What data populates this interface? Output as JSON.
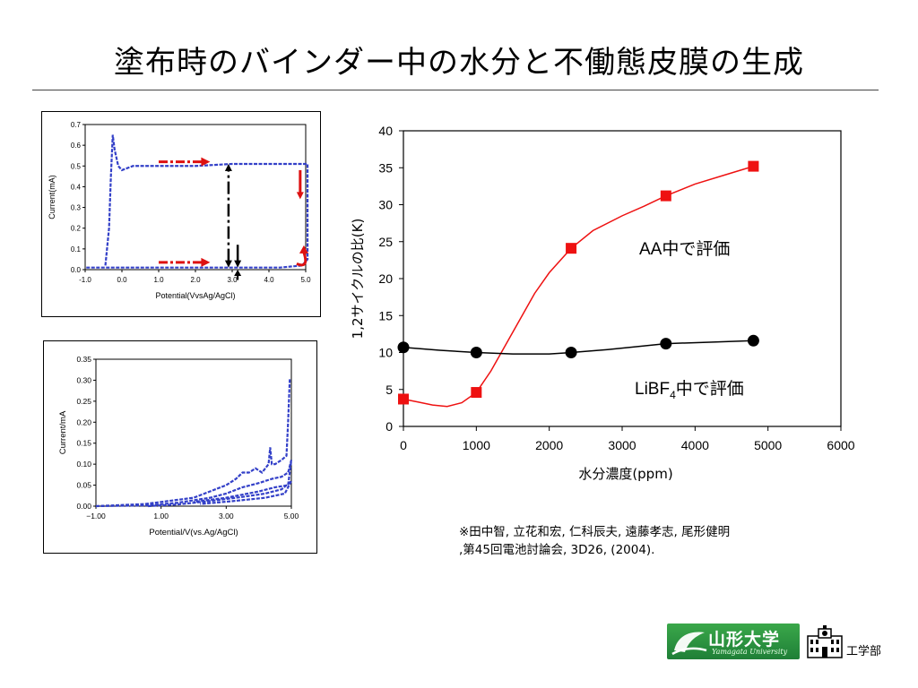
{
  "slide": {
    "title": "塗布時のバインダー中の水分と不働態皮膜の生成",
    "citation_line1": "※田中智, 立花和宏, 仁科辰夫, 遠藤孝志, 尾形健明",
    "citation_line2": ",第45回電池討論会, 3D26, (2004).",
    "logo_text": "山形大学",
    "logo_subtext": "Yamagata University",
    "faculty": "工学部"
  },
  "chart_data": [
    {
      "type": "line",
      "title": "",
      "xlabel": "Potential(VvsAg/AgCl)",
      "ylabel": "Current(mA)",
      "xlim": [
        -1.0,
        5.0
      ],
      "ylim": [
        0.0,
        0.7
      ],
      "xticks": [
        "-1.0",
        "0.0",
        "1.0",
        "2.0",
        "3.0",
        "4.0",
        "5.0"
      ],
      "yticks": [
        "0.0",
        "0.1",
        "0.2",
        "0.3",
        "0.4",
        "0.5",
        "0.6",
        "0.7"
      ],
      "series": [
        {
          "color": "#3340c8",
          "x": [
            -0.45,
            -0.35,
            -0.3,
            -0.25,
            -0.2,
            -0.1,
            0.0,
            0.3,
            1.0,
            2.0,
            3.0,
            4.0,
            4.5,
            4.8,
            5.05,
            5.05,
            4.9,
            4.6,
            4.3,
            4.0,
            3.0,
            2.0,
            1.0,
            0.0,
            -0.4,
            -1.0
          ],
          "y": [
            0.02,
            0.2,
            0.45,
            0.65,
            0.58,
            0.5,
            0.48,
            0.5,
            0.5,
            0.5,
            0.51,
            0.51,
            0.51,
            0.51,
            0.51,
            0.05,
            0.02,
            0.015,
            0.01,
            0.01,
            0.01,
            0.01,
            0.01,
            0.01,
            0.01,
            0.01
          ]
        }
      ],
      "annotations": [
        {
          "type": "arrow",
          "color": "#dd1111",
          "direction": "right",
          "x1": 1.0,
          "x2": 2.4,
          "y": 0.52
        },
        {
          "type": "arrow",
          "color": "#dd1111",
          "direction": "right",
          "x1": 1.0,
          "x2": 2.4,
          "y": 0.035
        },
        {
          "type": "arrow",
          "color": "#dd1111",
          "direction": "down",
          "x": 4.85,
          "y1": 0.48,
          "y2": 0.34
        },
        {
          "type": "arrow",
          "color": "#dd1111",
          "direction": "curve-up",
          "x": 4.95,
          "y1": 0.02,
          "y2": 0.1
        },
        {
          "type": "double-arrow",
          "color": "#000000",
          "x": 2.9,
          "y1": 0.01,
          "y2": 0.51
        },
        {
          "type": "arrow",
          "color": "#000000",
          "direction": "down",
          "x": 3.15,
          "y1": 0.12,
          "y2": 0.01
        },
        {
          "type": "arrow",
          "color": "#000000",
          "direction": "up",
          "x": 3.15,
          "y1": -0.05,
          "y2": 0.0
        }
      ]
    },
    {
      "type": "line",
      "title": "",
      "xlabel": "Potential/V(vs.Ag/AgCl)",
      "ylabel": "Current/mA",
      "xlim": [
        -1.0,
        5.0
      ],
      "ylim": [
        0.0,
        0.35
      ],
      "xticks": [
        "−1.00",
        "1.00",
        "3.00",
        "5.00"
      ],
      "yticks": [
        "0.00",
        "0.05",
        "0.10",
        "0.15",
        "0.20",
        "0.25",
        "0.30",
        "0.35"
      ],
      "series": [
        {
          "color": "#3340c8",
          "x": [
            -1.0,
            0.5,
            1.0,
            2.0,
            2.5,
            3.0,
            3.3,
            3.5,
            3.7,
            3.9,
            4.1,
            4.3,
            4.35,
            4.4,
            4.5,
            4.7,
            4.85,
            4.9,
            4.95,
            5.0
          ],
          "y": [
            0.0,
            0.005,
            0.01,
            0.02,
            0.035,
            0.05,
            0.065,
            0.08,
            0.08,
            0.09,
            0.08,
            0.1,
            0.14,
            0.1,
            0.1,
            0.11,
            0.12,
            0.2,
            0.3,
            0.3
          ]
        },
        {
          "color": "#3340c8",
          "x": [
            -1.0,
            0.6,
            1.5,
            2.5,
            3.0,
            3.5,
            4.0,
            4.4,
            4.7,
            4.9,
            5.0,
            4.9,
            4.5,
            4.0,
            3.0,
            2.0
          ],
          "y": [
            0.0,
            0.002,
            0.008,
            0.02,
            0.03,
            0.045,
            0.055,
            0.065,
            0.07,
            0.08,
            0.11,
            0.05,
            0.045,
            0.035,
            0.02,
            0.01
          ]
        },
        {
          "color": "#3340c8",
          "x": [
            0.6,
            1.5,
            2.5,
            3.5,
            4.2,
            4.7,
            5.0,
            4.8,
            4.2,
            3.2,
            2.2
          ],
          "y": [
            0.0,
            0.004,
            0.012,
            0.022,
            0.03,
            0.04,
            0.06,
            0.03,
            0.02,
            0.012,
            0.005
          ]
        }
      ]
    },
    {
      "type": "scatter",
      "title": "",
      "xlabel": "水分濃度(ppm)",
      "ylabel": "1,2サイクルの比(K)",
      "xlim": [
        0,
        6000
      ],
      "ylim": [
        0,
        40
      ],
      "xticks": [
        "0",
        "1000",
        "2000",
        "3000",
        "4000",
        "5000",
        "6000"
      ],
      "yticks": [
        "0",
        "5",
        "10",
        "15",
        "20",
        "25",
        "30",
        "35",
        "40"
      ],
      "series": [
        {
          "label_text": "AA中で評価",
          "color": "#ee1111",
          "marker": "square",
          "x": [
            0,
            1000,
            2300,
            3600,
            4800
          ],
          "y": [
            3.7,
            4.6,
            24.1,
            31.2,
            35.2
          ],
          "curve_x": [
            0,
            200,
            400,
            600,
            800,
            1000,
            1200,
            1400,
            1600,
            1800,
            2000,
            2300,
            2600,
            3000,
            3300,
            3600,
            4000,
            4400,
            4800
          ],
          "curve_y": [
            3.7,
            3.3,
            2.9,
            2.7,
            3.2,
            4.6,
            7.5,
            11.0,
            14.5,
            18.0,
            20.8,
            24.1,
            26.5,
            28.5,
            29.8,
            31.2,
            32.8,
            34.0,
            35.2
          ]
        },
        {
          "label_text": "LiBF",
          "label_subscript": "4",
          "label_suffix": "中で評価",
          "color": "#000000",
          "marker": "circle",
          "x": [
            0,
            1000,
            2300,
            3600,
            4800
          ],
          "y": [
            10.7,
            10.0,
            10.0,
            11.2,
            11.6
          ],
          "curve_x": [
            0,
            500,
            1000,
            1500,
            2000,
            2300,
            2800,
            3300,
            3600,
            4200,
            4800
          ],
          "curve_y": [
            10.7,
            10.3,
            10.0,
            9.8,
            9.8,
            10.0,
            10.4,
            10.9,
            11.2,
            11.4,
            11.6
          ]
        }
      ]
    }
  ]
}
